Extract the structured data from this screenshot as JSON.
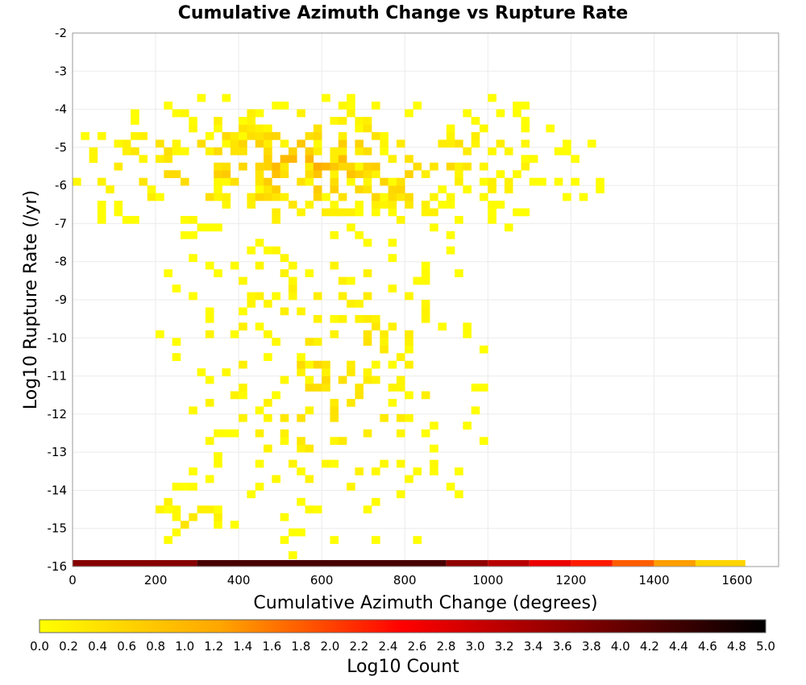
{
  "chart_data": {
    "type": "heatmap",
    "title": "Cumulative Azimuth Change vs Rupture Rate",
    "xlabel": "Cumulative Azimuth Change (degrees)",
    "ylabel": "Log10 Rupture Rate (/yr)",
    "xlim": [
      0,
      1700
    ],
    "ylim": [
      -16,
      -2
    ],
    "x_ticks": [
      "0",
      "200",
      "400",
      "600",
      "800",
      "1000",
      "1200",
      "1400",
      "1600"
    ],
    "y_ticks": [
      "-2",
      "-3",
      "-4",
      "-5",
      "-6",
      "-7",
      "-8",
      "-9",
      "-10",
      "-11",
      "-12",
      "-13",
      "-14",
      "-15",
      "-16"
    ],
    "grid": true,
    "x_bin_width": 20,
    "y_bin_height": 0.2,
    "colorbar": {
      "label": "Log10 Count",
      "range": [
        0,
        5
      ],
      "ticks": [
        "0.0",
        "0.2",
        "0.4",
        "0.6",
        "0.8",
        "1.0",
        "1.2",
        "1.4",
        "1.6",
        "1.8",
        "2.0",
        "2.2",
        "2.4",
        "2.6",
        "2.8",
        "3.0",
        "3.2",
        "3.4",
        "3.6",
        "3.8",
        "4.0",
        "4.2",
        "4.4",
        "4.6",
        "4.8",
        "5.0"
      ],
      "colors": [
        "#ffff00",
        "#ffa500",
        "#ff0000",
        "#800000",
        "#000000"
      ]
    },
    "bottom_row": {
      "y": -15.95,
      "segments": [
        {
          "x_start": 0,
          "x_end": 300,
          "value": 3.7
        },
        {
          "x_start": 300,
          "x_end": 900,
          "value": 4.3
        },
        {
          "x_start": 900,
          "x_end": 1000,
          "value": 3.6
        },
        {
          "x_start": 1000,
          "x_end": 1100,
          "value": 3.2
        },
        {
          "x_start": 1100,
          "x_end": 1200,
          "value": 2.7
        },
        {
          "x_start": 1200,
          "x_end": 1300,
          "value": 2.3
        },
        {
          "x_start": 1300,
          "x_end": 1400,
          "value": 1.8
        },
        {
          "x_start": 1400,
          "x_end": 1500,
          "value": 1.3
        },
        {
          "x_start": 1500,
          "x_end": 1620,
          "value": 0.6
        }
      ]
    },
    "clusters": [
      {
        "x_range": [
          0,
          1280
        ],
        "y_range": [
          -7.2,
          -3.6
        ],
        "x_center": 560,
        "y_center": -5.6,
        "max_value": 1.2,
        "density": 0.62
      },
      {
        "x_range": [
          200,
          1000
        ],
        "y_range": [
          -15.8,
          -7.4
        ],
        "x_center": 600,
        "y_center": -11,
        "max_value": 0.6,
        "density": 0.28
      },
      {
        "x_range": [
          140,
          420
        ],
        "y_range": [
          -15.8,
          -13.8
        ],
        "x_center": 280,
        "y_center": -14.8,
        "max_value": 0.5,
        "density": 0.25
      }
    ]
  }
}
